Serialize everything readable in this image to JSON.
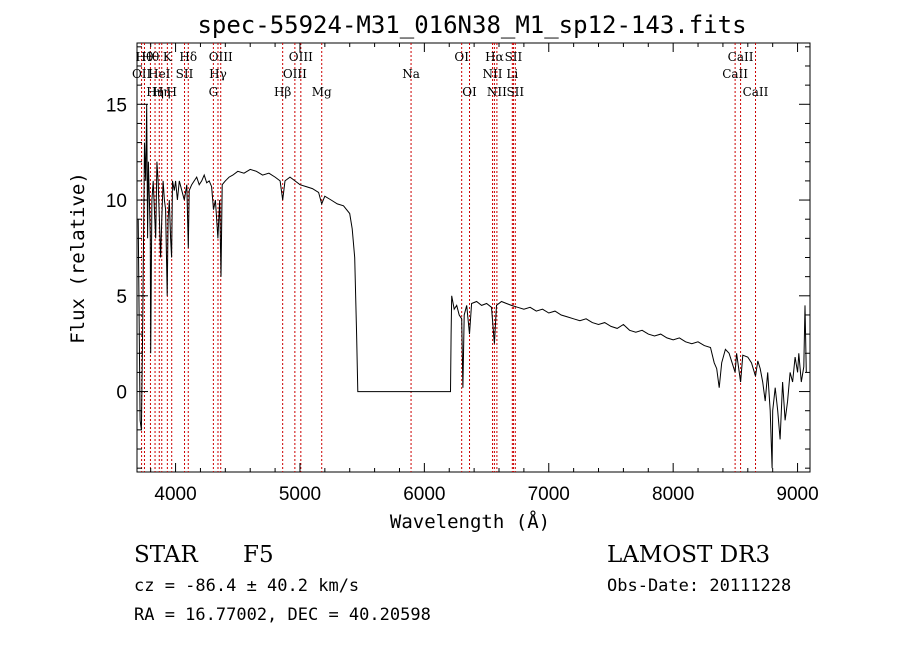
{
  "chart_data": {
    "type": "line",
    "title": "spec-55924-M31_016N38_M1_sp12-143.fits",
    "xlabel": "Wavelength (Å)",
    "ylabel": "Flux (relative)",
    "xlim": [
      3690,
      9100
    ],
    "ylim": [
      -4.2,
      18.2
    ],
    "xticks": [
      {
        "value": 4000,
        "label": "4000"
      },
      {
        "value": 5000,
        "label": "5000"
      },
      {
        "value": 6000,
        "label": "6000"
      },
      {
        "value": 7000,
        "label": "7000"
      },
      {
        "value": 8000,
        "label": "8000"
      },
      {
        "value": 9000,
        "label": "9000"
      }
    ],
    "yticks": [
      {
        "value": 0,
        "label": "0"
      },
      {
        "value": 5,
        "label": "5"
      },
      {
        "value": 10,
        "label": "10"
      },
      {
        "value": 15,
        "label": "15"
      }
    ],
    "line_color": "#000000",
    "marker_color": "#cc0000",
    "series": [
      {
        "name": "flux",
        "points": [
          [
            3700,
            9
          ],
          [
            3715,
            -1.5
          ],
          [
            3725,
            -2
          ],
          [
            3735,
            3
          ],
          [
            3750,
            13
          ],
          [
            3760,
            11
          ],
          [
            3768,
            15
          ],
          [
            3775,
            8
          ],
          [
            3782,
            12
          ],
          [
            3790,
            10
          ],
          [
            3797,
            8
          ],
          [
            3800,
            2
          ],
          [
            3810,
            10
          ],
          [
            3820,
            11
          ],
          [
            3833,
            9
          ],
          [
            3840,
            8
          ],
          [
            3850,
            12
          ],
          [
            3860,
            11
          ],
          [
            3870,
            9
          ],
          [
            3880,
            7
          ],
          [
            3889,
            9
          ],
          [
            3900,
            11
          ],
          [
            3910,
            10
          ],
          [
            3920,
            9.5
          ],
          [
            3933,
            5
          ],
          [
            3940,
            9
          ],
          [
            3950,
            10
          ],
          [
            3960,
            8
          ],
          [
            3968,
            7
          ],
          [
            3975,
            11
          ],
          [
            3990,
            10.5
          ],
          [
            4000,
            11
          ],
          [
            4015,
            10
          ],
          [
            4030,
            11
          ],
          [
            4050,
            10.5
          ],
          [
            4070,
            10
          ],
          [
            4090,
            10.8
          ],
          [
            4102,
            7.5
          ],
          [
            4110,
            10.5
          ],
          [
            4130,
            10.8
          ],
          [
            4150,
            11
          ],
          [
            4170,
            11.2
          ],
          [
            4190,
            10.8
          ],
          [
            4210,
            11
          ],
          [
            4230,
            11.3
          ],
          [
            4250,
            10.9
          ],
          [
            4270,
            11
          ],
          [
            4290,
            10.7
          ],
          [
            4305,
            9.5
          ],
          [
            4320,
            10
          ],
          [
            4340,
            8
          ],
          [
            4355,
            10
          ],
          [
            4365,
            6
          ],
          [
            4375,
            10.8
          ],
          [
            4400,
            11
          ],
          [
            4430,
            11.2
          ],
          [
            4460,
            11.3
          ],
          [
            4500,
            11.5
          ],
          [
            4550,
            11.4
          ],
          [
            4600,
            11.6
          ],
          [
            4650,
            11.5
          ],
          [
            4700,
            11.3
          ],
          [
            4750,
            11.4
          ],
          [
            4800,
            11.2
          ],
          [
            4840,
            11
          ],
          [
            4861,
            10
          ],
          [
            4880,
            11
          ],
          [
            4920,
            11.2
          ],
          [
            4960,
            11
          ],
          [
            5000,
            10.8
          ],
          [
            5050,
            10.7
          ],
          [
            5100,
            10.6
          ],
          [
            5150,
            10.4
          ],
          [
            5175,
            9.8
          ],
          [
            5200,
            10.2
          ],
          [
            5250,
            10
          ],
          [
            5300,
            9.8
          ],
          [
            5350,
            9.7
          ],
          [
            5400,
            9.3
          ],
          [
            5420,
            8.5
          ],
          [
            5440,
            7
          ],
          [
            5455,
            3
          ],
          [
            5465,
            0
          ],
          [
            5600,
            0
          ],
          [
            5800,
            0
          ],
          [
            6000,
            0
          ],
          [
            6200,
            0
          ],
          [
            6210,
            0
          ],
          [
            6215,
            3
          ],
          [
            6220,
            5
          ],
          [
            6240,
            4.3
          ],
          [
            6260,
            4.5
          ],
          [
            6280,
            4
          ],
          [
            6300,
            3.8
          ],
          [
            6310,
            0.2
          ],
          [
            6320,
            4
          ],
          [
            6340,
            4.5
          ],
          [
            6363,
            3
          ],
          [
            6380,
            4.6
          ],
          [
            6420,
            4.7
          ],
          [
            6460,
            4.5
          ],
          [
            6500,
            4.6
          ],
          [
            6540,
            4.4
          ],
          [
            6563,
            2.5
          ],
          [
            6580,
            4.5
          ],
          [
            6620,
            4.7
          ],
          [
            6660,
            4.6
          ],
          [
            6700,
            4.5
          ],
          [
            6750,
            4.4
          ],
          [
            6800,
            4.3
          ],
          [
            6850,
            4.4
          ],
          [
            6900,
            4.2
          ],
          [
            6950,
            4.3
          ],
          [
            7000,
            4.1
          ],
          [
            7050,
            4.2
          ],
          [
            7100,
            4
          ],
          [
            7150,
            3.9
          ],
          [
            7200,
            3.8
          ],
          [
            7250,
            3.7
          ],
          [
            7300,
            3.8
          ],
          [
            7350,
            3.6
          ],
          [
            7400,
            3.5
          ],
          [
            7450,
            3.6
          ],
          [
            7500,
            3.4
          ],
          [
            7550,
            3.3
          ],
          [
            7600,
            3.5
          ],
          [
            7650,
            3.2
          ],
          [
            7700,
            3.1
          ],
          [
            7750,
            3.2
          ],
          [
            7800,
            3
          ],
          [
            7850,
            2.9
          ],
          [
            7900,
            3
          ],
          [
            7950,
            2.8
          ],
          [
            8000,
            2.7
          ],
          [
            8050,
            2.8
          ],
          [
            8100,
            2.6
          ],
          [
            8150,
            2.5
          ],
          [
            8200,
            2.6
          ],
          [
            8250,
            2.4
          ],
          [
            8300,
            2.3
          ],
          [
            8330,
            1.5
          ],
          [
            8350,
            1.2
          ],
          [
            8370,
            0.2
          ],
          [
            8390,
            1.5
          ],
          [
            8420,
            2.2
          ],
          [
            8450,
            2
          ],
          [
            8498,
            1
          ],
          [
            8510,
            2
          ],
          [
            8542,
            0.5
          ],
          [
            8560,
            1.9
          ],
          [
            8600,
            1.8
          ],
          [
            8630,
            1.5
          ],
          [
            8662,
            0.8
          ],
          [
            8680,
            1.6
          ],
          [
            8700,
            1.2
          ],
          [
            8720,
            0.5
          ],
          [
            8740,
            -0.5
          ],
          [
            8760,
            1
          ],
          [
            8780,
            -1
          ],
          [
            8795,
            -4
          ],
          [
            8800,
            -1
          ],
          [
            8820,
            0.2
          ],
          [
            8840,
            -1
          ],
          [
            8860,
            -2.5
          ],
          [
            8880,
            0.5
          ],
          [
            8900,
            -1.5
          ],
          [
            8920,
            -0.5
          ],
          [
            8940,
            1
          ],
          [
            8960,
            0.5
          ],
          [
            8980,
            1.8
          ],
          [
            9000,
            1
          ],
          [
            9010,
            2
          ],
          [
            9030,
            0.5
          ],
          [
            9050,
            1.3
          ],
          [
            9060,
            4.5
          ],
          [
            9070,
            1
          ]
        ]
      }
    ],
    "lines": [
      {
        "wl": 3727,
        "label": "OII",
        "row": 2
      },
      {
        "wl": 3750,
        "label": "Hθ",
        "row": 1
      },
      {
        "wl": 3798,
        "label": "Hθ",
        "row": 1
      },
      {
        "wl": 3835,
        "label": "Hη",
        "row": 3
      },
      {
        "wl": 3869,
        "label": "HeI",
        "row": 2
      },
      {
        "wl": 3889,
        "label": "Hη",
        "row": 3
      },
      {
        "wl": 3934,
        "label": "K",
        "row": 1
      },
      {
        "wl": 3969,
        "label": "H",
        "row": 3
      },
      {
        "wl": 4072,
        "label": "SII",
        "row": 2
      },
      {
        "wl": 4102,
        "label": "Hδ",
        "row": 1
      },
      {
        "wl": 4304,
        "label": "G",
        "row": 3
      },
      {
        "wl": 4341,
        "label": "Hγ",
        "row": 2
      },
      {
        "wl": 4363,
        "label": "OIII",
        "row": 1
      },
      {
        "wl": 4861,
        "label": "Hβ",
        "row": 3
      },
      {
        "wl": 4959,
        "label": "OIII",
        "row": 2
      },
      {
        "wl": 5007,
        "label": "OIII",
        "row": 1
      },
      {
        "wl": 5175,
        "label": "Mg",
        "row": 3
      },
      {
        "wl": 5893,
        "label": "Na",
        "row": 2
      },
      {
        "wl": 6300,
        "label": "OI",
        "row": 1
      },
      {
        "wl": 6363,
        "label": "OI",
        "row": 3
      },
      {
        "wl": 6548,
        "label": "NII",
        "row": 2
      },
      {
        "wl": 6563,
        "label": "Hα",
        "row": 1
      },
      {
        "wl": 6583,
        "label": "NII",
        "row": 3
      },
      {
        "wl": 6707,
        "label": "Li",
        "row": 2
      },
      {
        "wl": 6716,
        "label": "SII",
        "row": 1
      },
      {
        "wl": 6731,
        "label": "SII",
        "row": 3
      },
      {
        "wl": 8498,
        "label": "CaII",
        "row": 2
      },
      {
        "wl": 8542,
        "label": "CaII",
        "row": 1
      },
      {
        "wl": 8662,
        "label": "CaII",
        "row": 3
      }
    ]
  },
  "info": {
    "classification": "STAR",
    "subclass": "F5",
    "survey": "LAMOST DR3",
    "cz": "cz = -86.4 ± 40.2 km/s",
    "obs_date": "Obs-Date: 20111228",
    "coords": "RA =  16.77002, DEC =  40.20598"
  }
}
